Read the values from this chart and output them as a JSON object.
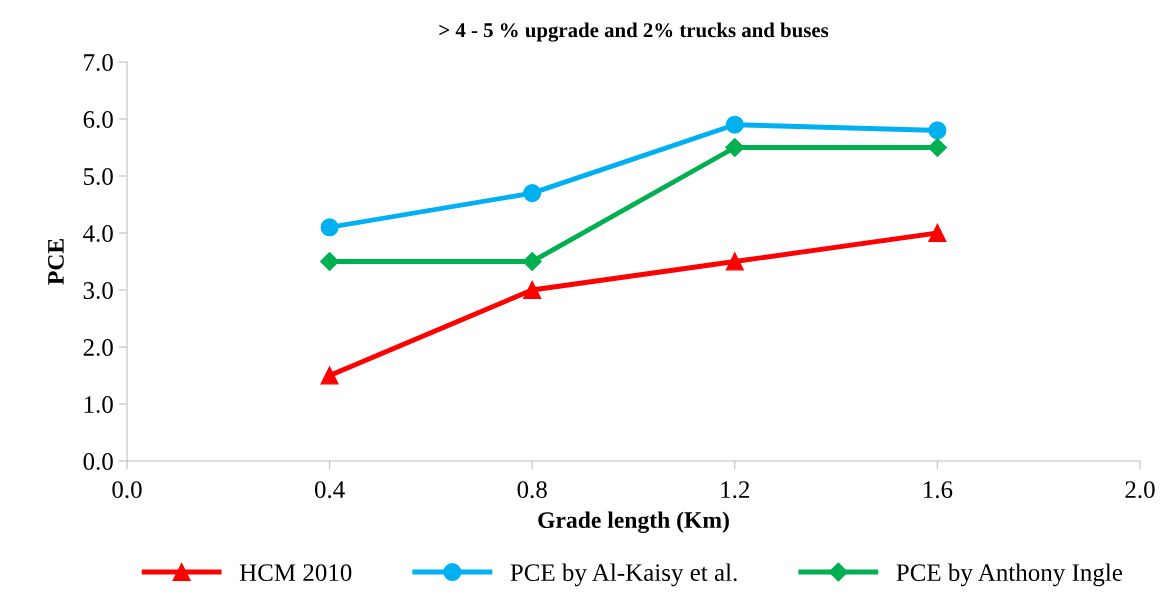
{
  "chart_data": {
    "type": "line",
    "title": "> 4 - 5 % upgrade and 2% trucks and buses",
    "xlabel": "Grade length (Km)",
    "ylabel": "PCE",
    "x": [
      0.4,
      0.8,
      1.2,
      1.6
    ],
    "series": [
      {
        "name": "HCM 2010",
        "color": "#ff0000",
        "marker": "triangle",
        "values": [
          1.5,
          3.0,
          3.5,
          4.0
        ]
      },
      {
        "name": "PCE by Al-Kaisy et al.",
        "color": "#00b0f0",
        "marker": "circle",
        "values": [
          4.1,
          4.7,
          5.9,
          5.8
        ]
      },
      {
        "name": "PCE by Anthony Ingle",
        "color": "#00b050",
        "marker": "diamond",
        "values": [
          3.5,
          3.5,
          5.5,
          5.5
        ]
      }
    ],
    "xlim": [
      0,
      2.0
    ],
    "xticks": [
      {
        "value": 0,
        "label": "0.0"
      },
      0.4,
      0.8,
      1.2,
      1.6,
      {
        "value": 2.0,
        "label": "2.0"
      }
    ],
    "ylim": [
      0,
      7.0
    ],
    "yticks": [
      {
        "value": 0,
        "label": "0.0"
      },
      {
        "value": 1,
        "label": "1.0"
      },
      {
        "value": 2,
        "label": "2.0"
      },
      {
        "value": 3,
        "label": "3.0"
      },
      {
        "value": 4,
        "label": "4.0"
      },
      {
        "value": 5,
        "label": "5.0"
      },
      {
        "value": 6,
        "label": "6.0"
      },
      {
        "value": 7,
        "label": "7.0"
      }
    ],
    "grid": false,
    "legend": "bottom",
    "line_style": "solid"
  }
}
